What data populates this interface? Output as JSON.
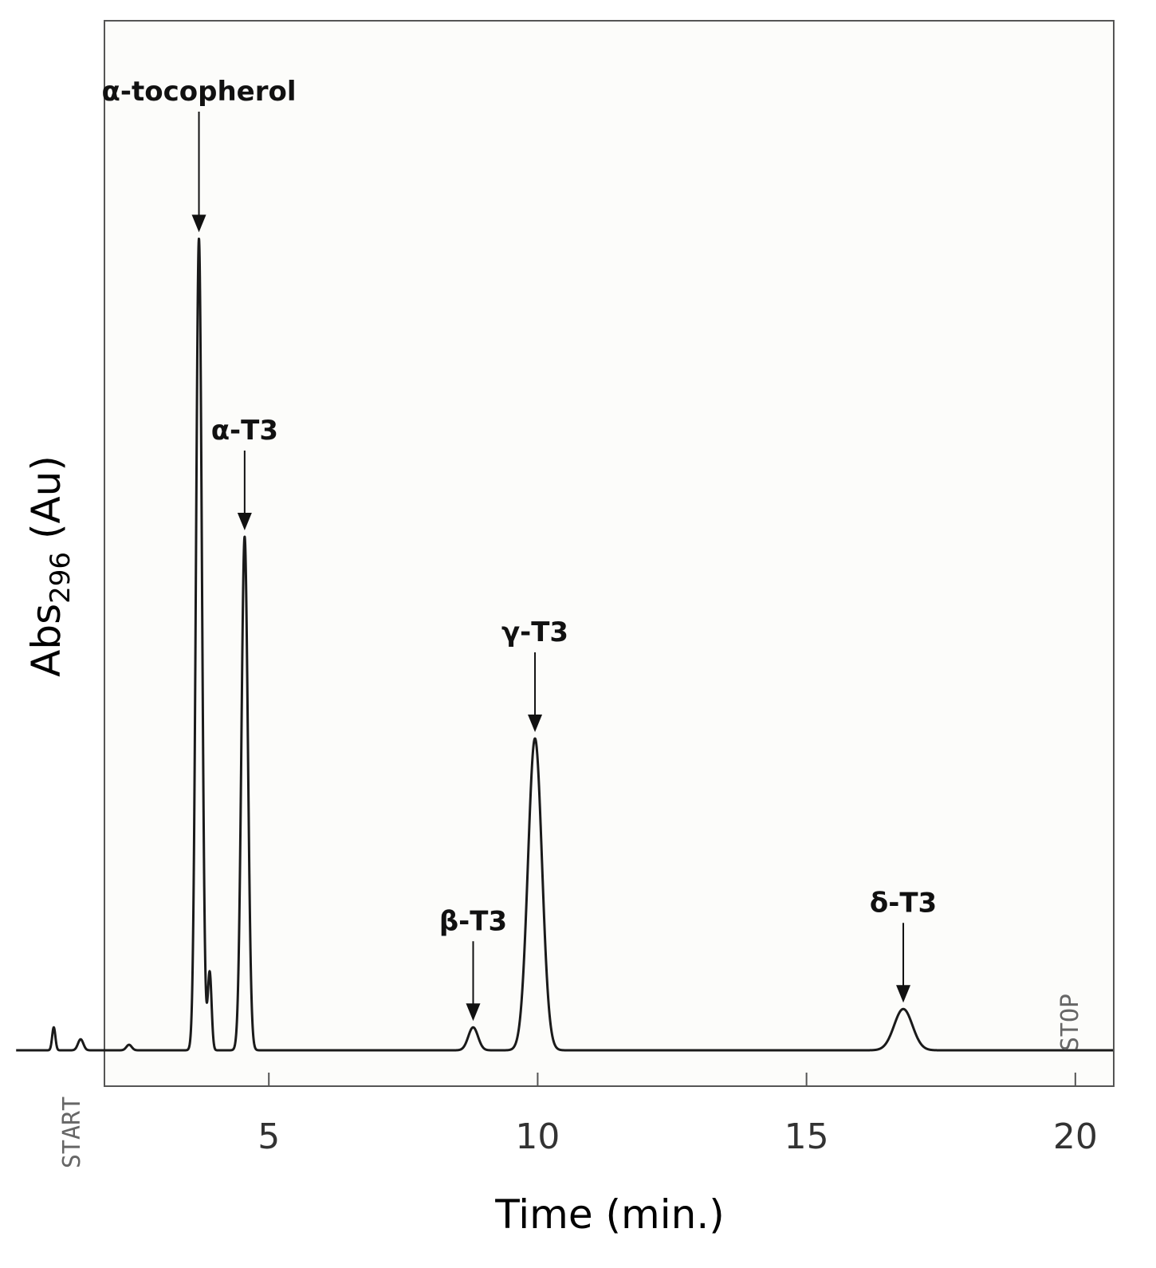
{
  "chart_data": {
    "type": "line",
    "xlabel": "Time (min.)",
    "ylabel": {
      "main": "Abs",
      "sub": "296",
      "unit": " (Au)"
    },
    "xlim": [
      0,
      21.5
    ],
    "ylim": [
      0,
      1
    ],
    "x_ticks": [
      5,
      10,
      15,
      20
    ],
    "grid": false,
    "legend": "none",
    "start_label": "START",
    "stop_label": "STOP",
    "line_color": "#1a1a1a",
    "baseline": 0.02,
    "peaks": [
      {
        "time": 1.0,
        "height": 0.025,
        "width": 0.03
      },
      {
        "time": 1.5,
        "height": 0.012,
        "width": 0.05
      },
      {
        "time": 2.4,
        "height": 0.006,
        "width": 0.05
      },
      {
        "time": 3.7,
        "height": 0.885,
        "width": 0.055
      },
      {
        "time": 3.9,
        "height": 0.085,
        "width": 0.035
      },
      {
        "time": 4.55,
        "height": 0.56,
        "width": 0.06
      },
      {
        "time": 8.8,
        "height": 0.025,
        "width": 0.09
      },
      {
        "time": 9.95,
        "height": 0.34,
        "width": 0.13
      },
      {
        "time": 16.8,
        "height": 0.045,
        "width": 0.17
      }
    ],
    "annotations": [
      {
        "text": "α-tocopherol",
        "time": 3.7
      },
      {
        "text": "α-T3",
        "time": 4.55
      },
      {
        "text": "β-T3",
        "time": 8.8
      },
      {
        "text": "γ-T3",
        "time": 9.95
      },
      {
        "text": "δ-T3",
        "time": 16.8
      }
    ]
  }
}
